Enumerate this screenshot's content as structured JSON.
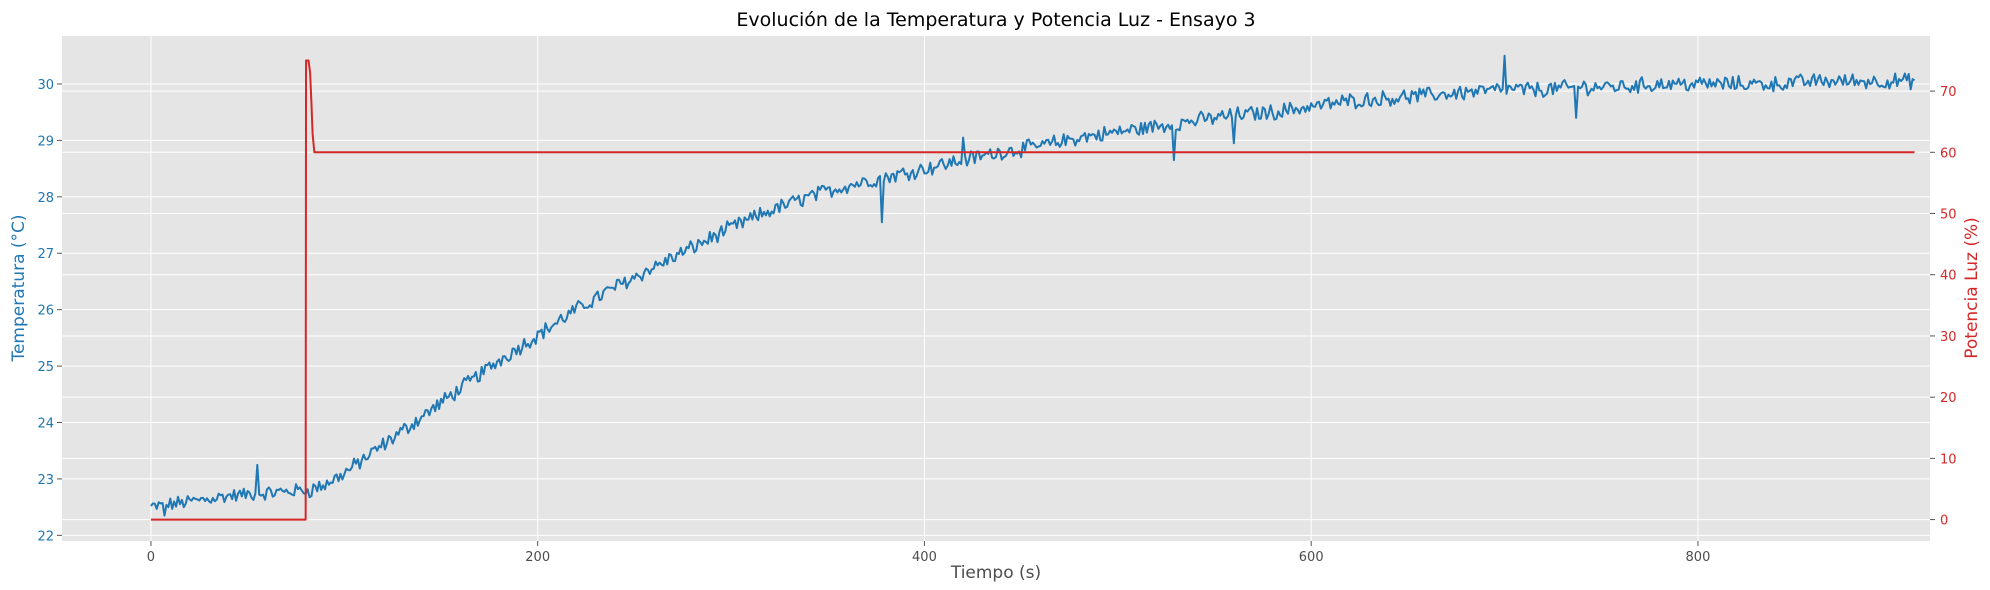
{
  "chart_data": {
    "type": "line",
    "title": "Evolución de la Temperatura y Potencia Luz - Ensayo 3",
    "xlabel": "Tiempo (s)",
    "ylabel_left": "Temperatura (°C)",
    "ylabel_right": "Potencia Luz (%)",
    "xlim": [
      -46,
      920
    ],
    "ylim_left": [
      21.9,
      30.85
    ],
    "ylim_right": [
      -3.5,
      79
    ],
    "x_ticks": [
      0,
      200,
      400,
      600,
      800
    ],
    "y_left_ticks": [
      22,
      23,
      24,
      25,
      26,
      27,
      28,
      29,
      30
    ],
    "y_right_ticks": [
      0,
      10,
      20,
      30,
      40,
      50,
      60,
      70
    ],
    "grid": true,
    "background": "#e5e5e5",
    "colors": {
      "temperature": "#1f77b4",
      "power": "#d62728",
      "grid": "#ffffff"
    },
    "series": [
      {
        "axis": "left",
        "trend": {
          "x": [
            0,
            20,
            40,
            60,
            78,
            82,
            90,
            100,
            120,
            140,
            160,
            180,
            200,
            220,
            240,
            260,
            280,
            300,
            320,
            340,
            360,
            380,
            400,
            420,
            440,
            460,
            480,
            500,
            520,
            540,
            560,
            580,
            600,
            620,
            640,
            660,
            680,
            700,
            720,
            740,
            760,
            780,
            800,
            820,
            840,
            860,
            880,
            900,
            912
          ],
          "y": [
            22.5,
            22.6,
            22.7,
            22.75,
            22.8,
            22.8,
            22.9,
            23.1,
            23.6,
            24.1,
            24.6,
            25.1,
            25.55,
            26.0,
            26.4,
            26.75,
            27.1,
            27.45,
            27.75,
            28.0,
            28.2,
            28.35,
            28.5,
            28.65,
            28.8,
            28.9,
            29.05,
            29.15,
            29.25,
            29.35,
            29.45,
            29.5,
            29.6,
            29.7,
            29.75,
            29.8,
            29.85,
            29.9,
            29.9,
            29.95,
            29.95,
            30.0,
            30.0,
            30.0,
            30.0,
            30.05,
            30.05,
            30.05,
            30.05
          ]
        },
        "noise_amplitude": 0.12,
        "spikes": [
          {
            "x": 7,
            "y": 22.35
          },
          {
            "x": 55,
            "y": 23.25
          },
          {
            "x": 378,
            "y": 27.55
          },
          {
            "x": 420,
            "y": 29.05
          },
          {
            "x": 529,
            "y": 28.65
          },
          {
            "x": 560,
            "y": 28.95
          },
          {
            "x": 700,
            "y": 30.5
          },
          {
            "x": 737,
            "y": 29.4
          }
        ]
      },
      {
        "axis": "right",
        "x": [
          0,
          80,
          80.2,
          81.5,
          82.3,
          83,
          83.6,
          84.5,
          86,
          912
        ],
        "y": [
          0,
          0,
          75,
          75,
          73,
          68,
          63,
          60,
          60,
          60
        ]
      }
    ]
  }
}
